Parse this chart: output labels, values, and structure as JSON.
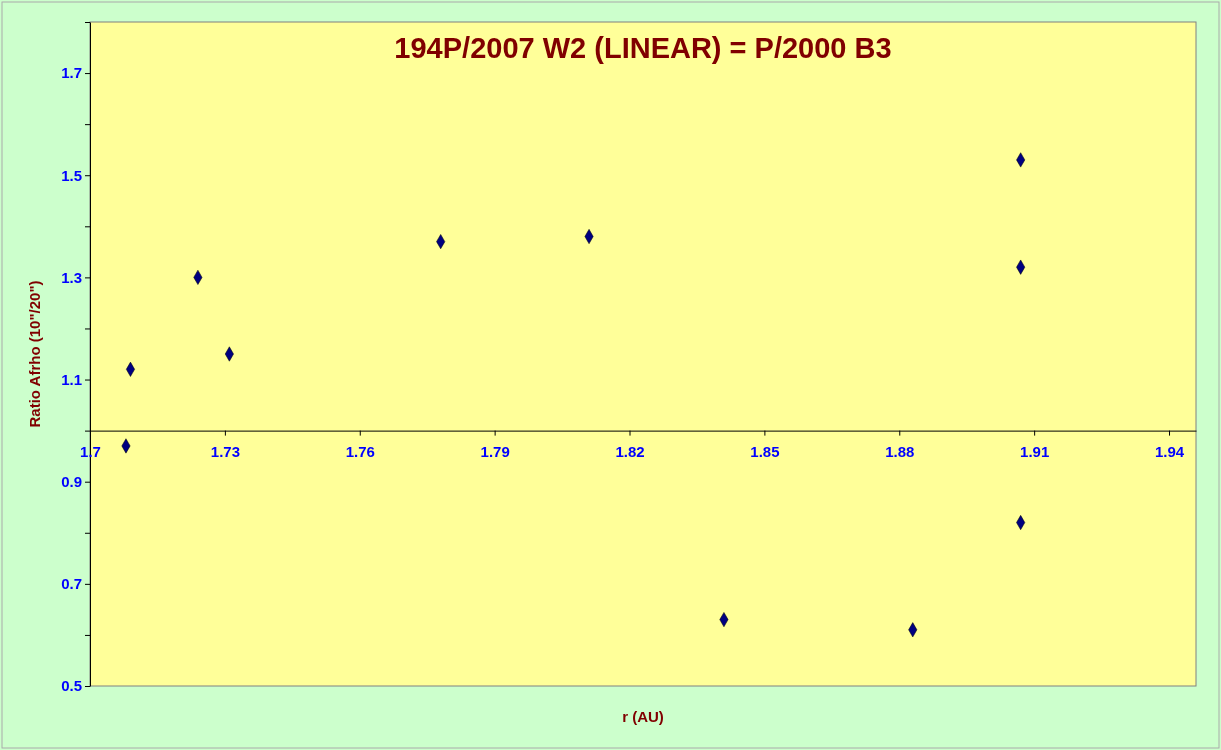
{
  "chart_data": {
    "type": "scatter",
    "title": "194P/2007 W2 (LINEAR) = P/2000 B3",
    "xlabel": "r (AU)",
    "ylabel": "Ratio Afrho (10\"/20\")",
    "x": [
      1.708,
      1.709,
      1.724,
      1.731,
      1.778,
      1.811,
      1.841,
      1.883,
      1.907,
      1.907,
      1.907
    ],
    "values": [
      0.97,
      1.12,
      1.3,
      1.15,
      1.37,
      1.38,
      0.63,
      0.61,
      1.53,
      1.32,
      0.82
    ],
    "color": "#000080",
    "marker": "diamond",
    "grid": false,
    "legend": false,
    "xlim": [
      1.7,
      1.946
    ],
    "xticks": [
      {
        "value": 1.7,
        "label": "1.7"
      },
      1.73,
      1.76,
      1.79,
      1.82,
      1.85,
      1.88,
      1.91,
      1.94
    ],
    "ylim": [
      0.5,
      1.8
    ],
    "yticks": [
      0.5,
      {
        "value": 0.6,
        "label": null
      },
      0.7,
      {
        "value": 0.8,
        "label": null
      },
      0.9,
      {
        "value": 1.0,
        "label": null
      },
      1.1,
      {
        "value": 1.2,
        "label": null
      },
      1.3,
      {
        "value": 1.4,
        "label": null
      },
      1.5,
      {
        "value": 1.6,
        "label": null
      },
      1.7,
      {
        "value": 1.8,
        "label": null
      }
    ]
  }
}
